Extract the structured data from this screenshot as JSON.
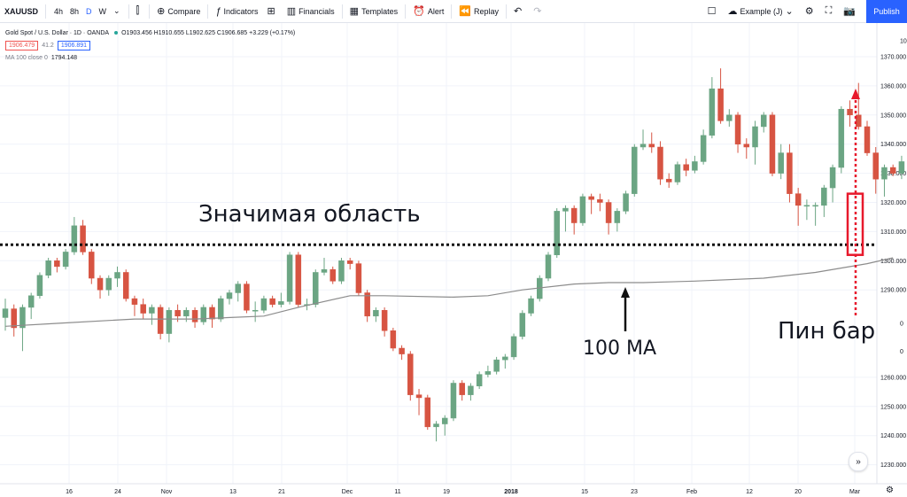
{
  "toolbar": {
    "symbol": "XAUUSD",
    "intervals": [
      "4h",
      "8h",
      "D",
      "W"
    ],
    "active_interval": "D",
    "compare": "Compare",
    "indicators": "Indicators",
    "financials": "Financials",
    "templates": "Templates",
    "alert": "Alert",
    "replay": "Replay",
    "layout_name": "Example (J)",
    "publish": "Publish"
  },
  "legend": {
    "title": "Gold Spot / U.S. Dollar · 1D · OANDA",
    "bid": "1906.479",
    "spread": "41.2",
    "ask": "1906.891",
    "ohlc": "O1903.456 H1910.655 L1902.625 C1906.685 +3.229 (+0.17%)",
    "ma_label": "MA 100 close 0",
    "ma_value": "1794.148"
  },
  "annotations": {
    "key_area": "Значимая область",
    "ma_label": "100 MA",
    "pin_bar": "Пин бар"
  },
  "colors": {
    "up": "#6ba583",
    "down": "#d75442",
    "ma": "#8c8c8c",
    "annot_red": "#e8192c",
    "accent": "#2962ff"
  },
  "chart_data": {
    "type": "candlestick",
    "price_axis": {
      "ticks": [
        1370,
        1360,
        1350,
        1340,
        1330,
        1320,
        1310,
        1300,
        1290,
        1260,
        1250,
        1240,
        1230
      ],
      "labels": [
        "1370.000",
        "1360.000",
        "1350.000",
        "1340.000",
        "1330.000",
        "1320.000",
        "1310.000",
        "1300.000",
        "1290.000",
        "1260.000",
        "1250.000",
        "1240.000",
        "1230.000"
      ],
      "partial_labels": [
        "10",
        "0",
        "0"
      ],
      "range": [
        1228,
        1378
      ]
    },
    "time_axis": {
      "labels": [
        "16",
        "24",
        "Nov",
        "13",
        "21",
        "Dec",
        "11",
        "19",
        "2018",
        "15",
        "23",
        "Feb",
        "12",
        "20",
        "Mar"
      ]
    },
    "key_level": 1305.5,
    "ma_100": [
      [
        0,
        1277.5
      ],
      [
        6,
        1278.5
      ],
      [
        15,
        1280
      ],
      [
        22,
        1280
      ],
      [
        30,
        1281
      ],
      [
        34,
        1284
      ],
      [
        40,
        1288
      ],
      [
        44,
        1288
      ],
      [
        52,
        1287.5
      ],
      [
        56,
        1288
      ],
      [
        60,
        1290
      ],
      [
        66,
        1292
      ],
      [
        70,
        1292.5
      ],
      [
        74,
        1292.5
      ],
      [
        80,
        1293
      ],
      [
        88,
        1294
      ],
      [
        94,
        1296
      ],
      [
        100,
        1299
      ],
      [
        103,
        1301
      ]
    ],
    "candles": [
      [
        1280.5,
        1283.5,
        1287,
        1276
      ],
      [
        1283.5,
        1277,
        1285,
        1274
      ],
      [
        1277,
        1284,
        1285,
        1269
      ],
      [
        1284,
        1288,
        1289,
        1280
      ],
      [
        1288,
        1295,
        1296,
        1287
      ],
      [
        1295,
        1300,
        1301,
        1294
      ],
      [
        1300,
        1298,
        1301,
        1296
      ],
      [
        1298,
        1303,
        1304,
        1297
      ],
      [
        1303,
        1312,
        1315,
        1302
      ],
      [
        1312,
        1303,
        1314,
        1302
      ],
      [
        1303,
        1294,
        1304,
        1292
      ],
      [
        1294,
        1290,
        1295,
        1287
      ],
      [
        1290,
        1294,
        1295,
        1288
      ],
      [
        1294,
        1296,
        1298,
        1291
      ],
      [
        1296,
        1287,
        1297,
        1286
      ],
      [
        1287,
        1285,
        1288,
        1281
      ],
      [
        1285,
        1282,
        1287,
        1280
      ],
      [
        1282,
        1284,
        1285,
        1278
      ],
      [
        1284,
        1275,
        1285,
        1273
      ],
      [
        1275,
        1283,
        1284,
        1272
      ],
      [
        1283,
        1281,
        1285,
        1279
      ],
      [
        1281,
        1283,
        1284,
        1279
      ],
      [
        1283,
        1279,
        1284,
        1277
      ],
      [
        1279,
        1284,
        1285,
        1278
      ],
      [
        1284,
        1280,
        1285,
        1277
      ],
      [
        1280,
        1287,
        1288,
        1279
      ],
      [
        1287,
        1289,
        1290,
        1285
      ],
      [
        1289,
        1292,
        1293,
        1286
      ],
      [
        1292,
        1283,
        1293,
        1282
      ],
      [
        1283,
        1283,
        1286,
        1279
      ],
      [
        1283,
        1287,
        1288,
        1282
      ],
      [
        1287,
        1285,
        1288,
        1284
      ],
      [
        1285,
        1286,
        1289,
        1284
      ],
      [
        1286,
        1302,
        1303,
        1285
      ],
      [
        1302,
        1285,
        1303,
        1284
      ],
      [
        1285,
        1285,
        1287,
        1283
      ],
      [
        1285,
        1296,
        1297,
        1284
      ],
      [
        1296,
        1297,
        1301,
        1295
      ],
      [
        1297,
        1293,
        1298,
        1292
      ],
      [
        1293,
        1300,
        1301,
        1292
      ],
      [
        1300,
        1299,
        1301,
        1297
      ],
      [
        1299,
        1289,
        1300,
        1288
      ],
      [
        1289,
        1281,
        1290,
        1279
      ],
      [
        1281,
        1283,
        1284,
        1279
      ],
      [
        1283,
        1276,
        1284,
        1274
      ],
      [
        1276,
        1270,
        1277,
        1269
      ],
      [
        1270,
        1268,
        1271,
        1266
      ],
      [
        1268,
        1254,
        1269,
        1252
      ],
      [
        1254,
        1253,
        1256,
        1247
      ],
      [
        1253,
        1243,
        1254,
        1242
      ],
      [
        1243,
        1244,
        1245,
        1238
      ],
      [
        1244,
        1246,
        1247,
        1240
      ],
      [
        1246,
        1258,
        1259,
        1245
      ],
      [
        1258,
        1254,
        1259,
        1252
      ],
      [
        1254,
        1257,
        1258,
        1252
      ],
      [
        1257,
        1261,
        1262,
        1256
      ],
      [
        1261,
        1262,
        1264,
        1260
      ],
      [
        1262,
        1266,
        1267,
        1261
      ],
      [
        1266,
        1267,
        1268,
        1263
      ],
      [
        1267,
        1274,
        1275,
        1266
      ],
      [
        1274,
        1282,
        1283,
        1273
      ],
      [
        1282,
        1287,
        1288,
        1281
      ],
      [
        1287,
        1294,
        1295,
        1286
      ],
      [
        1294,
        1302,
        1303,
        1293
      ],
      [
        1302,
        1317,
        1318,
        1301
      ],
      [
        1317,
        1318,
        1319,
        1310
      ],
      [
        1318,
        1313,
        1319,
        1309
      ],
      [
        1313,
        1322,
        1323,
        1312
      ],
      [
        1322,
        1321,
        1323,
        1316
      ],
      [
        1321,
        1320,
        1323,
        1317
      ],
      [
        1320,
        1313,
        1321,
        1309
      ],
      [
        1313,
        1317,
        1318,
        1310
      ],
      [
        1317,
        1323,
        1324,
        1316
      ],
      [
        1323,
        1339,
        1340,
        1322
      ],
      [
        1339,
        1340,
        1345,
        1338
      ],
      [
        1340,
        1339,
        1344,
        1337
      ],
      [
        1339,
        1328,
        1341,
        1326
      ],
      [
        1328,
        1327,
        1330,
        1325
      ],
      [
        1327,
        1333,
        1334,
        1326
      ],
      [
        1333,
        1331,
        1335,
        1329
      ],
      [
        1331,
        1334,
        1336,
        1330
      ],
      [
        1334,
        1343,
        1345,
        1333
      ],
      [
        1343,
        1359,
        1363,
        1342
      ],
      [
        1359,
        1348,
        1366,
        1347
      ],
      [
        1348,
        1350,
        1352,
        1346
      ],
      [
        1350,
        1340,
        1351,
        1337
      ],
      [
        1340,
        1339,
        1342,
        1335
      ],
      [
        1339,
        1346,
        1348,
        1333
      ],
      [
        1346,
        1350,
        1351,
        1344
      ],
      [
        1350,
        1330,
        1351,
        1329
      ],
      [
        1330,
        1337,
        1340,
        1328
      ],
      [
        1337,
        1323,
        1340,
        1320
      ],
      [
        1323,
        1319,
        1325,
        1312
      ],
      [
        1319,
        1319,
        1321,
        1314
      ],
      [
        1319,
        1319,
        1320,
        1312
      ],
      [
        1319,
        1325,
        1326,
        1315
      ],
      [
        1325,
        1332,
        1333,
        1320
      ],
      [
        1332,
        1352,
        1353,
        1330
      ],
      [
        1352,
        1350,
        1355,
        1346
      ],
      [
        1350,
        1346,
        1361,
        1345
      ],
      [
        1346,
        1337,
        1348,
        1336
      ],
      [
        1337,
        1328,
        1339,
        1323
      ],
      [
        1328,
        1332,
        1333,
        1322
      ],
      [
        1332,
        1330,
        1333,
        1329
      ],
      [
        1330,
        1334,
        1336,
        1328
      ],
      [
        1334,
        1319,
        1340,
        1314
      ],
      [
        1319,
        1318,
        1320,
        1316
      ],
      [
        1318,
        1321,
        1327,
        1318
      ],
      [
        1321,
        1319,
        1322,
        1317
      ]
    ]
  }
}
